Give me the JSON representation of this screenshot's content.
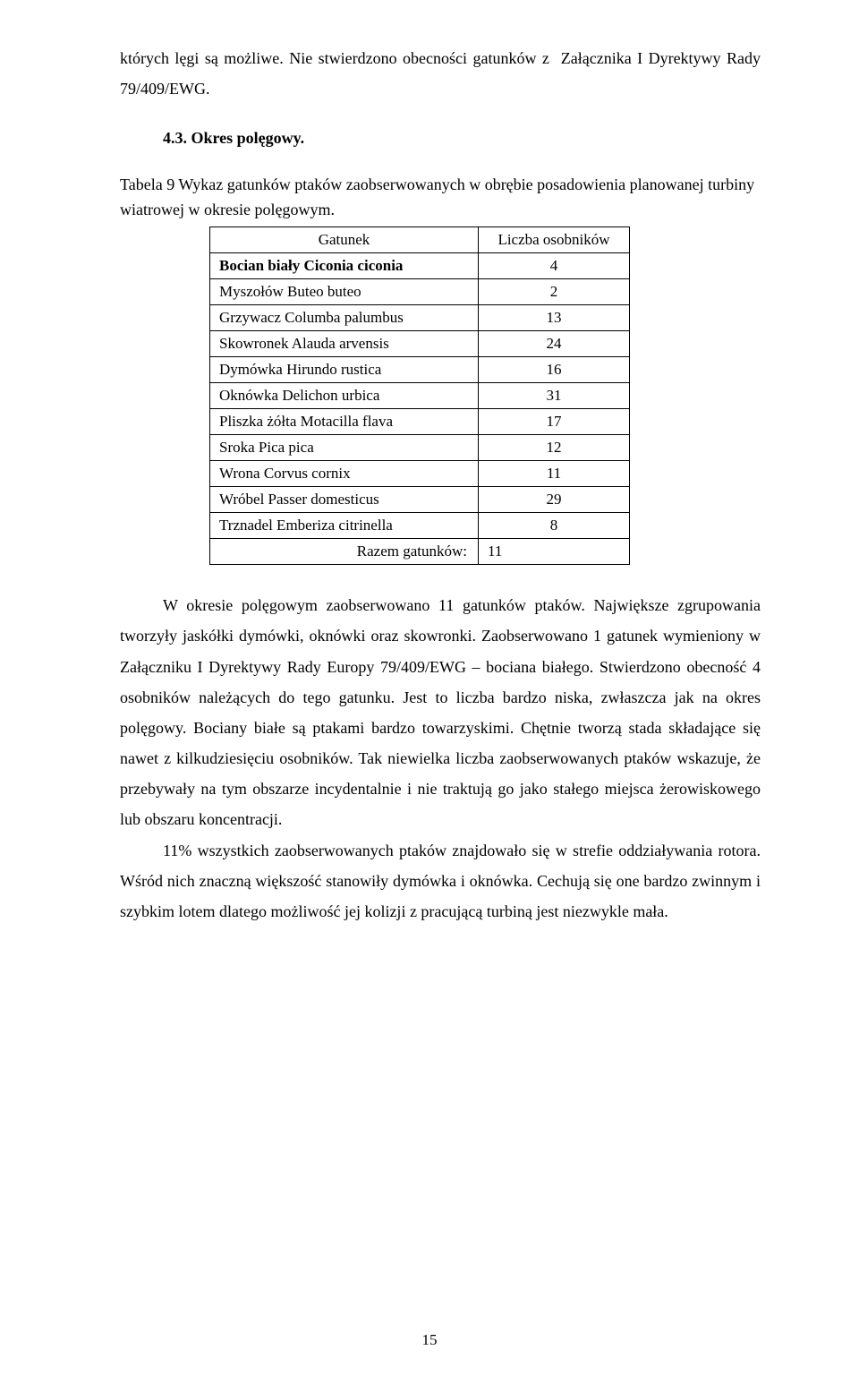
{
  "intro_text": "których lęgi są możliwe. Nie stwierdzono obecności gatunków z  Załącznika I Dyrektywy Rady 79/409/EWG.",
  "section_heading": "4.3. Okres polęgowy.",
  "table_caption": "Tabela 9 Wykaz gatunków ptaków zaobserwowanych w obrębie posadowienia planowanej turbiny wiatrowej w okresie polęgowym.",
  "table": {
    "header_species": "Gatunek",
    "header_count": "Liczba osobników",
    "rows": [
      {
        "name": "Bocian biały Ciconia ciconia",
        "count": "4",
        "bold": true
      },
      {
        "name": "Myszołów Buteo buteo",
        "count": "2",
        "bold": false
      },
      {
        "name": "Grzywacz Columba palumbus",
        "count": "13",
        "bold": false
      },
      {
        "name": "Skowronek Alauda arvensis",
        "count": "24",
        "bold": false
      },
      {
        "name": "Dymówka Hirundo rustica",
        "count": "16",
        "bold": false
      },
      {
        "name": "Oknówka Delichon urbica",
        "count": "31",
        "bold": false
      },
      {
        "name": "Pliszka żółta Motacilla flava",
        "count": "17",
        "bold": false
      },
      {
        "name": "Sroka Pica pica",
        "count": "12",
        "bold": false
      },
      {
        "name": "Wrona Corvus cornix",
        "count": "11",
        "bold": false
      },
      {
        "name": "Wróbel Passer domesticus",
        "count": "29",
        "bold": false
      },
      {
        "name": "Trznadel Emberiza citrinella",
        "count": "8",
        "bold": false
      }
    ],
    "summary_label": "Razem gatunków:",
    "summary_value": "11"
  },
  "body_para_1": "W okresie polęgowym zaobserwowano 11 gatunków ptaków. Największe zgrupowania tworzyły jaskółki dymówki, oknówki oraz skowronki. Zaobserwowano 1 gatunek wymieniony w Załączniku I Dyrektywy Rady Europy 79/409/EWG – bociana białego. Stwierdzono obecność 4 osobników należących do tego gatunku. Jest to liczba bardzo niska, zwłaszcza jak na okres polęgowy. Bociany białe są ptakami bardzo towarzyskimi. Chętnie tworzą stada składające się nawet z kilkudziesięciu osobników. Tak niewielka liczba zaobserwowanych ptaków wskazuje, że przebywały na tym obszarze incydentalnie i nie traktują go jako stałego miejsca żerowiskowego lub obszaru koncentracji.",
  "body_para_2": "11% wszystkich zaobserwowanych ptaków znajdowało się w strefie oddziaływania rotora. Wśród nich znaczną większość stanowiły dymówka i oknówka. Cechują się one bardzo zwinnym i szybkim lotem dlatego możliwość jej kolizji z pracującą turbiną jest niezwykle mała.",
  "page_number": "15"
}
